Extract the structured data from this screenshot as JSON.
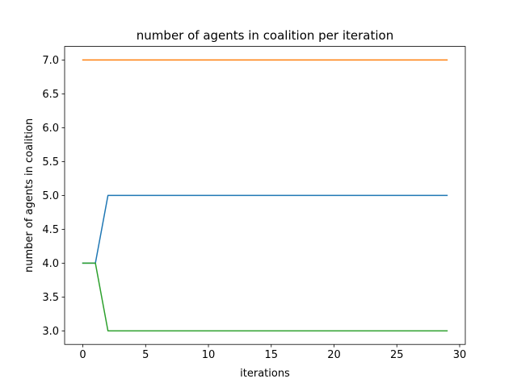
{
  "chart_data": {
    "type": "line",
    "title": "number of agents in coalition per iteration",
    "xlabel": "iterations",
    "ylabel": "number of agents in coalition",
    "xlim": [
      -1.45,
      30.45
    ],
    "ylim": [
      2.8,
      7.2
    ],
    "xticks": [
      0,
      5,
      10,
      15,
      20,
      25,
      30
    ],
    "xtick_labels": [
      "0",
      "5",
      "10",
      "15",
      "20",
      "25",
      "30"
    ],
    "yticks": [
      3.0,
      3.5,
      4.0,
      4.5,
      5.0,
      5.5,
      6.0,
      6.5,
      7.0
    ],
    "ytick_labels": [
      "3.0",
      "3.5",
      "4.0",
      "4.5",
      "5.0",
      "5.5",
      "6.0",
      "6.5",
      "7.0"
    ],
    "grid": false,
    "series": [
      {
        "color": "#1f77b4",
        "x": [
          0,
          1,
          2,
          29
        ],
        "y": [
          4,
          4,
          5,
          5
        ]
      },
      {
        "color": "#ff7f0e",
        "x": [
          0,
          29
        ],
        "y": [
          7,
          7
        ]
      },
      {
        "color": "#2ca02c",
        "x": [
          0,
          1,
          2,
          29
        ],
        "y": [
          4,
          4,
          3,
          3
        ]
      }
    ]
  }
}
